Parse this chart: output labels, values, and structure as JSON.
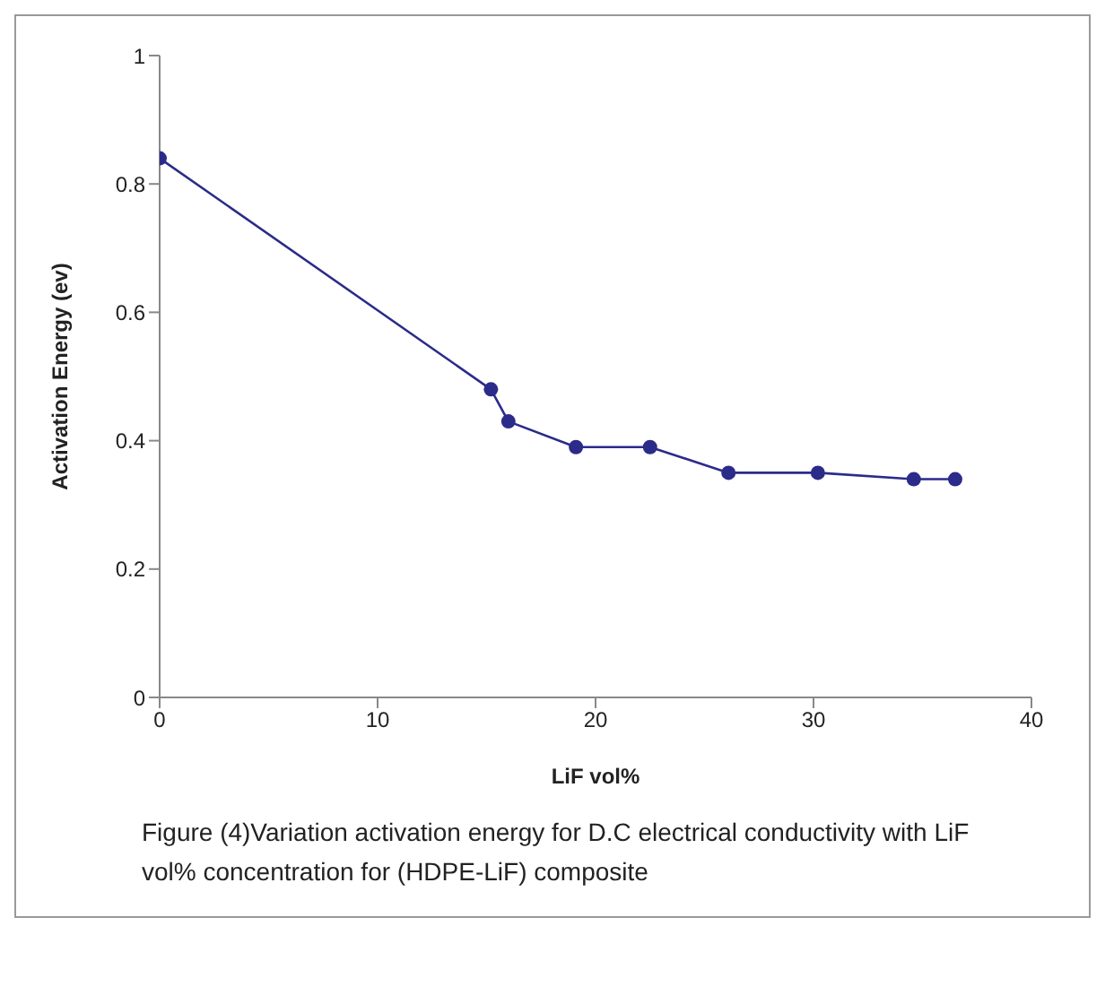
{
  "chart_data": {
    "type": "line",
    "xlabel": "LiF vol%",
    "ylabel": "Activation Energy (ev)",
    "x": [
      0,
      15.2,
      16.0,
      19.1,
      22.5,
      26.1,
      30.2,
      34.6,
      36.5
    ],
    "series": [
      {
        "color": "#2b2b8a",
        "values": [
          0.84,
          0.48,
          0.43,
          0.39,
          0.39,
          0.35,
          0.35,
          0.34,
          0.34
        ]
      }
    ],
    "xlim": [
      0,
      40
    ],
    "xticks": [
      0,
      10,
      20,
      30,
      40
    ],
    "ylim": [
      0,
      1
    ],
    "yticks": [
      0,
      0.2,
      0.4,
      0.6,
      0.8,
      1
    ],
    "grid": false,
    "marker": "circle",
    "line_style": "solid",
    "annotations": [
      "Figure (4)Variation activation energy for D.C electrical conductivity with LiF vol% concentration for (HDPE-LiF) composite"
    ]
  }
}
